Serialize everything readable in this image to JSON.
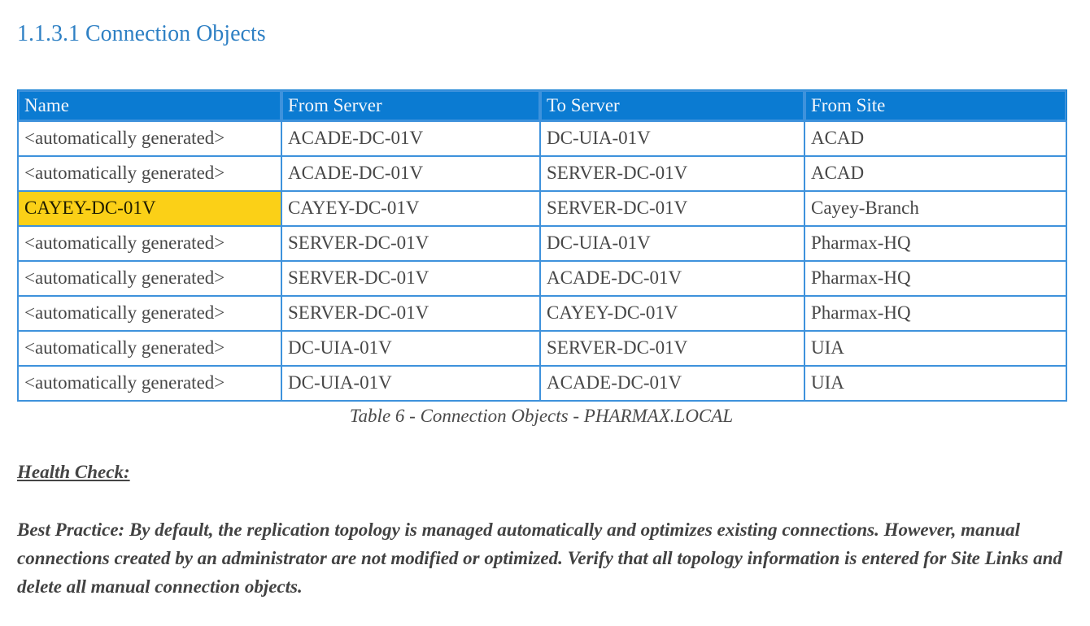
{
  "page": {
    "heading": "1.1.3.1 Connection Objects",
    "caption": "Table 6 - Connection Objects - PHARMAX.LOCAL",
    "health_check_label": "Health Check:",
    "best_practice_text": "Best Practice: By default, the replication topology is managed automatically and optimizes existing connections. However, manual connections created by an administrator are not modified or optimized. Verify that all topology information is entered for Site Links and delete all manual connection objects."
  },
  "table": {
    "columns": [
      "Name",
      "From Server",
      "To Server",
      "From Site"
    ],
    "rows": [
      {
        "cells": [
          "<automatically generated>",
          "ACADE-DC-01V",
          "DC-UIA-01V",
          "ACAD"
        ],
        "highlight": false
      },
      {
        "cells": [
          "<automatically generated>",
          "ACADE-DC-01V",
          "SERVER-DC-01V",
          "ACAD"
        ],
        "highlight": false
      },
      {
        "cells": [
          "CAYEY-DC-01V",
          "CAYEY-DC-01V",
          "SERVER-DC-01V",
          "Cayey-Branch"
        ],
        "highlight": true
      },
      {
        "cells": [
          "<automatically generated>",
          "SERVER-DC-01V",
          "DC-UIA-01V",
          "Pharmax-HQ"
        ],
        "highlight": false
      },
      {
        "cells": [
          "<automatically generated>",
          "SERVER-DC-01V",
          "ACADE-DC-01V",
          "Pharmax-HQ"
        ],
        "highlight": false
      },
      {
        "cells": [
          "<automatically generated>",
          "SERVER-DC-01V",
          "CAYEY-DC-01V",
          "Pharmax-HQ"
        ],
        "highlight": false
      },
      {
        "cells": [
          "<automatically generated>",
          "DC-UIA-01V",
          "SERVER-DC-01V",
          "UIA"
        ],
        "highlight": false
      },
      {
        "cells": [
          "<automatically generated>",
          "DC-UIA-01V",
          "ACADE-DC-01V",
          "UIA"
        ],
        "highlight": false
      }
    ]
  },
  "colors": {
    "table_header_bg": "#0b7bd2",
    "table_border": "#3e92dc",
    "highlight_yellow": "#fbd017",
    "heading_blue": "#2e80c4",
    "body_text": "#474747"
  }
}
